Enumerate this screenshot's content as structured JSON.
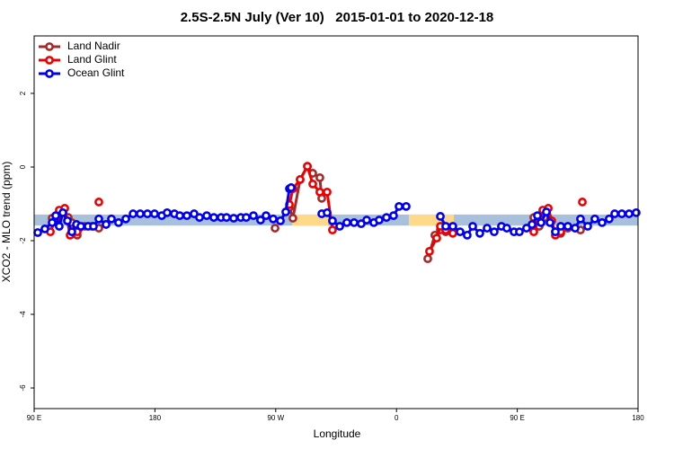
{
  "chart_data": {
    "type": "line",
    "title": "2.5S-2.5N July (Ver 10)   2015-01-01 to 2020-12-18",
    "x_label": "Longitude",
    "y_label": "XCO2 - MLO trend (ppm)",
    "xlim": [
      90,
      540
    ],
    "ylim": [
      -6.56,
      3.56
    ],
    "xticks": [
      {
        "value": 90,
        "label": "90 E"
      },
      180,
      {
        "value": 270,
        "label": "90 W"
      },
      {
        "value": 360,
        "label": "0"
      },
      {
        "value": 450,
        "label": "90 E"
      },
      {
        "value": 540,
        "label": "180"
      }
    ],
    "yticks": [
      2,
      0,
      -2,
      -4,
      -6
    ],
    "legend": "top-left",
    "bands": [
      {
        "x": [
          90,
          540
        ],
        "y": [
          -1.59,
          -1.29
        ],
        "color": "#a9c0dc"
      },
      {
        "x": [
          282.2,
          309.0
        ],
        "y": [
          -1.59,
          -1.29
        ],
        "color": "#ffd98a"
      },
      {
        "x": [
          369.2,
          402.7
        ],
        "y": [
          -1.59,
          -1.29
        ],
        "color": "#ffd98a"
      }
    ],
    "series": [
      {
        "name": "Land Nadir",
        "color": "#a52a2a",
        "x": [
          103.4,
          107.4,
          111.4,
          115.4,
          118.1,
          122.1,
          127.5,
          132.9,
          138.2,
          null,
          269.5,
          null,
          280.2,
          282.8,
          288.2,
          293.6,
          297.6,
          302.9,
          304.3,
          null,
          383.3,
          388.6,
          392.7,
          396.7,
          402.0,
          null,
          462.3,
          466.3,
          470.3,
          474.4,
          478.4,
          482.4,
          487.7,
          497.1
        ],
        "values": [
          -1.39,
          -1.46,
          -1.22,
          -1.37,
          -1.51,
          -1.85,
          -1.61,
          -1.61,
          -1.66,
          null,
          -1.66,
          null,
          -1.1,
          -1.39,
          -0.34,
          0.02,
          -0.17,
          -0.29,
          -0.85,
          null,
          -2.49,
          -1.85,
          -1.71,
          -1.76,
          -1.71,
          null,
          -1.37,
          -1.61,
          -1.37,
          -1.44,
          -1.76,
          -1.8,
          -1.66,
          -1.71
        ]
      },
      {
        "name": "Land Glint",
        "color": "#ee0000",
        "x": [
          102.1,
          106.1,
          108.7,
          112.8,
          116.8,
          122.1,
          null,
          138.2,
          null,
          280.2,
          282.8,
          288.2,
          293.6,
          297.6,
          302.9,
          308.3,
          312.3,
          null,
          384.6,
          390.0,
          392.7,
          396.7,
          402.0,
          null,
          462.3,
          466.3,
          469.0,
          473.1,
          475.7,
          478.4,
          482.4,
          null,
          498.5
        ],
        "values": [
          -1.76,
          -1.41,
          -1.17,
          -1.12,
          -1.85,
          -1.76,
          null,
          -0.95,
          null,
          -1.02,
          -0.59,
          -0.34,
          0.02,
          -0.46,
          -0.68,
          -0.68,
          -1.71,
          null,
          -2.29,
          -1.93,
          -1.61,
          -1.71,
          -1.8,
          null,
          -1.76,
          -1.41,
          -1.17,
          -1.12,
          -1.46,
          -1.85,
          -1.76,
          null,
          -0.95
        ]
      },
      {
        "name": "Ocean Glint",
        "color": "#0000ee",
        "x": [
          92.7,
          98.0,
          103.4,
          106.1,
          108.7,
          111.4,
          114.8,
          118.1,
          121.5,
          124.8,
          130.2,
          134.2,
          138.2,
          143.6,
          147.6,
          152.9,
          158.3,
          163.7,
          169.0,
          174.4,
          179.7,
          185.1,
          189.1,
          194.5,
          198.5,
          203.8,
          209.2,
          213.2,
          218.6,
          223.9,
          229.3,
          233.3,
          238.7,
          244.0,
          248.0,
          253.4,
          258.7,
          262.8,
          268.1,
          273.5,
          277.5,
          280.2,
          281.5,
          null,
          304.3,
          308.3,
          312.3,
          317.7,
          323.0,
          328.4,
          333.7,
          337.8,
          343.1,
          347.1,
          352.5,
          357.8,
          361.9,
          367.2,
          null,
          392.7,
          396.7,
          402.0,
          407.4,
          412.7,
          416.8,
          422.1,
          427.5,
          432.8,
          438.2,
          442.2,
          447.6,
          451.6,
          456.9,
          461.0,
          465.0,
          467.7,
          471.7,
          474.4,
          478.4,
          482.4,
          487.7,
          493.1,
          497.1,
          502.5,
          507.8,
          513.2,
          518.5,
          522.6,
          527.9,
          533.3,
          538.6
        ],
        "values": [
          -1.78,
          -1.68,
          -1.51,
          -1.32,
          -1.61,
          -1.24,
          -1.46,
          -1.76,
          -1.56,
          -1.61,
          -1.61,
          -1.61,
          -1.41,
          -1.56,
          -1.41,
          -1.51,
          -1.41,
          -1.27,
          -1.27,
          -1.27,
          -1.27,
          -1.32,
          -1.24,
          -1.27,
          -1.32,
          -1.32,
          -1.27,
          -1.37,
          -1.32,
          -1.37,
          -1.37,
          -1.37,
          -1.39,
          -1.37,
          -1.37,
          -1.32,
          -1.44,
          -1.32,
          -1.41,
          -1.46,
          -1.22,
          -0.59,
          -0.56,
          null,
          -1.27,
          -1.24,
          -1.46,
          -1.61,
          -1.51,
          -1.51,
          -1.54,
          -1.44,
          -1.51,
          -1.44,
          -1.37,
          -1.32,
          -1.07,
          -1.07,
          null,
          -1.34,
          -1.61,
          -1.61,
          -1.76,
          -1.85,
          -1.61,
          -1.8,
          -1.66,
          -1.76,
          -1.61,
          -1.66,
          -1.76,
          -1.76,
          -1.66,
          -1.56,
          -1.32,
          -1.51,
          -1.22,
          -1.51,
          -1.76,
          -1.61,
          -1.61,
          -1.66,
          -1.41,
          -1.61,
          -1.41,
          -1.51,
          -1.41,
          -1.27,
          -1.27,
          -1.27,
          -1.24
        ]
      }
    ]
  }
}
